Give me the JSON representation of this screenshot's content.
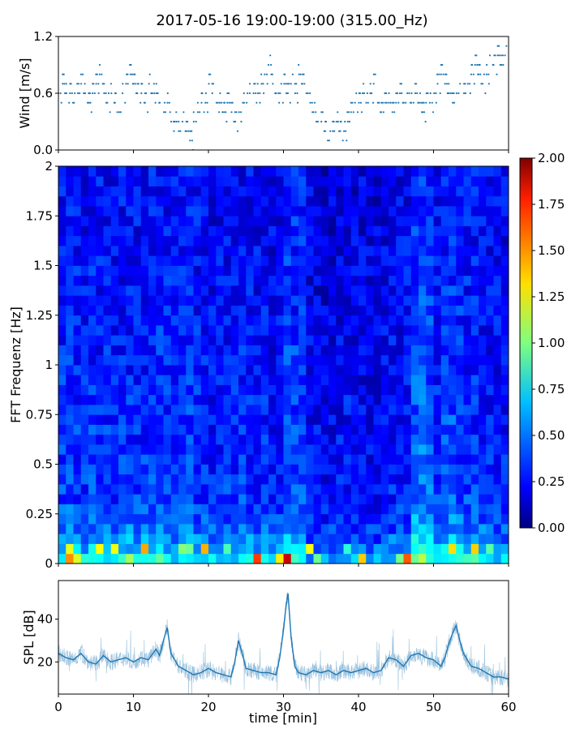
{
  "title": "2017-05-16 19:00-19:00 (315.00_Hz)",
  "chart_data": [
    {
      "type": "scatter",
      "id": "wind",
      "ylabel": "Wind [m/s]",
      "xlim": [
        0,
        60
      ],
      "ylim": [
        0.0,
        1.2
      ],
      "yticks": [
        0.0,
        0.6,
        1.2
      ],
      "yticklabels": [
        "0.0",
        "0.6",
        "1.2"
      ],
      "series_color": "#1f77b4",
      "x": [
        0,
        0.5,
        1,
        1.5,
        2,
        2.5,
        3,
        3.5,
        4,
        4.5,
        5,
        5.5,
        6,
        6.5,
        7,
        7.5,
        8,
        8.5,
        9,
        9.5,
        10,
        10.5,
        11,
        11.5,
        12,
        12.5,
        13,
        13.5,
        14,
        14.5,
        15,
        15.5,
        16,
        16.5,
        17,
        17.5,
        18,
        18.5,
        19,
        19.5,
        20,
        20.5,
        21,
        21.5,
        22,
        22.5,
        23,
        23.5,
        24,
        24.5,
        25,
        25.5,
        26,
        26.5,
        27,
        27.5,
        28,
        28.5,
        29,
        29.5,
        30,
        30.5,
        31,
        31.5,
        32,
        32.5,
        33,
        33.5,
        34,
        34.5,
        35,
        35.5,
        36,
        36.5,
        37,
        37.5,
        38,
        38.5,
        39,
        39.5,
        40,
        40.5,
        41,
        41.5,
        42,
        42.5,
        43,
        43.5,
        44,
        44.5,
        45,
        45.5,
        46,
        46.5,
        47,
        47.5,
        48,
        48.5,
        49,
        49.5,
        50,
        50.5,
        51,
        51.5,
        52,
        52.5,
        53,
        53.5,
        54,
        54.5,
        55,
        55.5,
        56,
        56.5,
        57,
        57.5,
        58,
        58.5,
        59,
        59.5,
        60
      ],
      "y": [
        0.6,
        0.7,
        0.6,
        0.6,
        0.5,
        0.6,
        0.7,
        0.6,
        0.5,
        0.6,
        0.7,
        0.8,
        0.6,
        0.5,
        0.6,
        0.5,
        0.4,
        0.6,
        0.7,
        0.8,
        0.7,
        0.6,
        0.6,
        0.5,
        0.7,
        0.6,
        0.6,
        0.5,
        0.4,
        0.5,
        0.3,
        0.3,
        0.2,
        0.3,
        0.2,
        0.1,
        0.3,
        0.4,
        0.5,
        0.5,
        0.7,
        0.6,
        0.5,
        0.5,
        0.4,
        0.5,
        0.4,
        0.3,
        0.4,
        0.5,
        0.5,
        0.6,
        0.6,
        0.6,
        0.7,
        0.8,
        0.9,
        0.7,
        0.6,
        0.6,
        0.7,
        0.6,
        0.7,
        0.6,
        0.8,
        0.7,
        0.6,
        0.5,
        0.4,
        0.3,
        0.3,
        0.2,
        0.1,
        0.2,
        0.3,
        0.2,
        0.2,
        0.3,
        0.4,
        0.5,
        0.5,
        0.6,
        0.5,
        0.6,
        0.7,
        0.5,
        0.4,
        0.5,
        0.5,
        0.4,
        0.5,
        0.6,
        0.5,
        0.6,
        0.5,
        0.6,
        0.5,
        0.4,
        0.5,
        0.5,
        0.6,
        0.7,
        0.8,
        0.7,
        0.6,
        0.5,
        0.6,
        0.7,
        0.6,
        0.7,
        0.8,
        0.9,
        0.8,
        0.7,
        0.8,
        1.0,
        0.9,
        1.0,
        0.9,
        1.0,
        1.1
      ]
    },
    {
      "type": "heatmap",
      "id": "spectrogram",
      "ylabel": "FFT Frequenz [Hz]",
      "xlim": [
        0,
        60
      ],
      "ylim": [
        0,
        2
      ],
      "yticks": [
        0,
        0.25,
        0.5,
        0.75,
        1,
        1.25,
        1.5,
        1.75,
        2
      ],
      "yticklabels": [
        "0",
        "0.25",
        "0.5",
        "0.75",
        "1",
        "1.25",
        "1.5",
        "1.75",
        "2"
      ],
      "colorscale": "jet",
      "clim": [
        0.0,
        2.0
      ],
      "colorbar_ticks": [
        0.0,
        0.25,
        0.5,
        0.75,
        1.0,
        1.25,
        1.5,
        1.75,
        2.0
      ],
      "colorbar_ticklabels": [
        "0.00",
        "0.25",
        "0.50",
        "0.75",
        "1.00",
        "1.25",
        "1.50",
        "1.75",
        "2.00"
      ],
      "time_bins": 60,
      "freq_bins": 40,
      "column_mean": [
        0.42,
        0.44,
        0.4,
        0.38,
        0.41,
        0.4,
        0.39,
        0.37,
        0.4,
        0.41,
        0.38,
        0.4,
        0.42,
        0.43,
        0.4,
        0.38,
        0.41,
        0.43,
        0.39,
        0.37,
        0.35,
        0.36,
        0.37,
        0.38,
        0.39,
        0.38,
        0.36,
        0.37,
        0.32,
        0.36,
        0.48,
        0.46,
        0.44,
        0.3,
        0.28,
        0.27,
        0.28,
        0.3,
        0.32,
        0.3,
        0.3,
        0.29,
        0.28,
        0.31,
        0.33,
        0.34,
        0.36,
        0.52,
        0.55,
        0.5,
        0.4,
        0.45,
        0.48,
        0.44,
        0.42,
        0.4,
        0.38,
        0.36,
        0.35,
        0.34
      ],
      "band_boost": [
        0.9,
        0.7,
        0.55,
        0.45,
        0.38,
        0.32,
        0.3,
        0.28,
        0.27,
        0.26,
        0.25,
        0.25,
        0.24,
        0.24,
        0.23,
        0.22,
        0.22,
        0.2,
        0.2,
        0.18,
        0.18,
        0.18,
        0.17,
        0.17,
        0.16,
        0.16,
        0.16,
        0.15,
        0.15,
        0.15,
        0.14,
        0.14,
        0.14,
        0.13,
        0.13,
        0.13,
        0.12,
        0.12,
        0.12,
        0.12
      ]
    },
    {
      "type": "line",
      "id": "spl",
      "ylabel": "SPL [dB]",
      "xlabel": "time [min]",
      "xlim": [
        0,
        60
      ],
      "ylim": [
        5,
        58
      ],
      "yticks": [
        20,
        40
      ],
      "yticklabels": [
        "20",
        "40"
      ],
      "xticks": [
        0,
        10,
        20,
        30,
        40,
        50,
        60
      ],
      "xticklabels": [
        "0",
        "10",
        "20",
        "30",
        "40",
        "50",
        "60"
      ],
      "series_color": "#1f77b4",
      "x": [
        0,
        1,
        2,
        3,
        4,
        5,
        6,
        7,
        8,
        9,
        10,
        11,
        12,
        13,
        13.5,
        14,
        14.5,
        15,
        16,
        17,
        18,
        19,
        20,
        21,
        22,
        23,
        23.5,
        24,
        24.5,
        25,
        26,
        27,
        28,
        29,
        29.5,
        30,
        30.3,
        30.6,
        31,
        31.5,
        32,
        33,
        34,
        35,
        36,
        37,
        38,
        39,
        40,
        41,
        42,
        43,
        44,
        45,
        46,
        47,
        48,
        49,
        50,
        51,
        51.5,
        52,
        52.5,
        53,
        53.5,
        54,
        55,
        56,
        57,
        58,
        59,
        60
      ],
      "y": [
        24,
        22,
        21,
        24,
        20,
        19,
        23,
        20,
        21,
        22,
        20,
        22,
        21,
        26,
        23,
        30,
        36,
        24,
        18,
        16,
        14,
        15,
        17,
        15,
        14,
        13,
        20,
        30,
        24,
        17,
        16,
        15,
        15,
        14,
        22,
        35,
        45,
        52,
        32,
        18,
        15,
        14,
        16,
        15,
        16,
        14,
        16,
        15,
        16,
        17,
        15,
        16,
        22,
        21,
        18,
        23,
        24,
        22,
        21,
        18,
        22,
        28,
        33,
        37,
        30,
        24,
        18,
        17,
        15,
        13,
        13,
        12
      ]
    }
  ]
}
